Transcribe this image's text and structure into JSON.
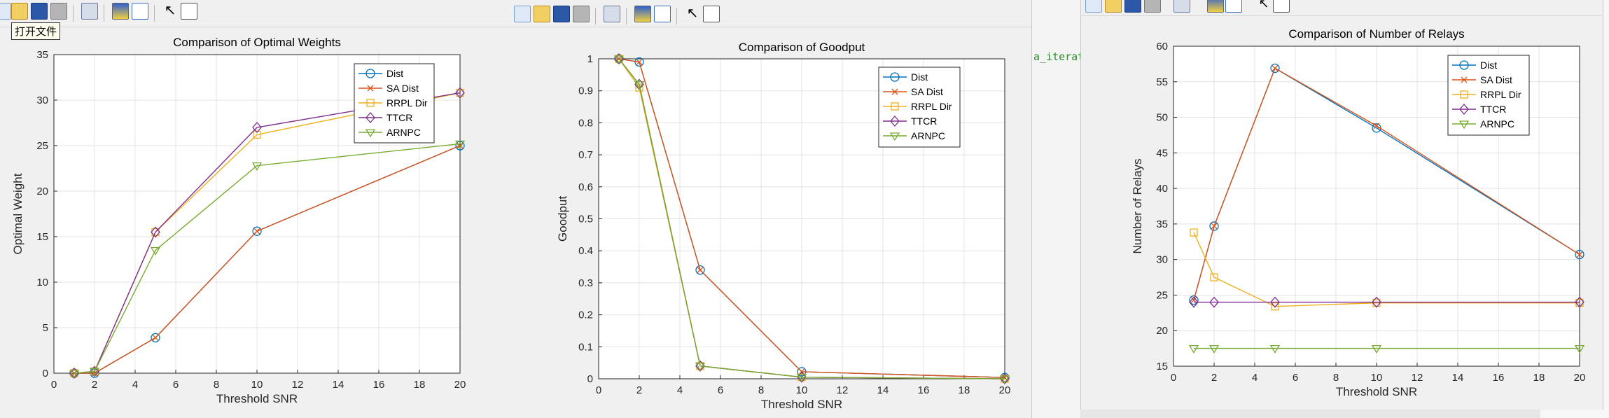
{
  "tooltip": "打开文件",
  "background_code": "a_iterat",
  "windows": [
    {
      "title": "Comparison of Optimal Weights",
      "xlabel": "Threshold SNR",
      "ylabel": "Optimal Weight",
      "xlim": [
        0,
        20
      ],
      "ylim": [
        0,
        35
      ],
      "xticks": [
        0,
        2,
        4,
        6,
        8,
        10,
        12,
        14,
        16,
        18,
        20
      ],
      "yticks": [
        0,
        5,
        10,
        15,
        20,
        25,
        30,
        35
      ],
      "legend": [
        "Dist",
        "SA Dist",
        "RRPL Dir",
        "TTCR",
        "ARNPC"
      ]
    },
    {
      "title": "Comparison of Goodput",
      "xlabel": "Threshold SNR",
      "ylabel": "Goodput",
      "xlim": [
        0,
        20
      ],
      "ylim": [
        0,
        1
      ],
      "xticks": [
        0,
        2,
        4,
        6,
        8,
        10,
        12,
        14,
        16,
        18,
        20
      ],
      "yticks": [
        0,
        0.1,
        0.2,
        0.3,
        0.4,
        0.5,
        0.6,
        0.7,
        0.8,
        0.9,
        1
      ],
      "legend": [
        "Dist",
        "SA Dist",
        "RRPL Dir",
        "TTCR",
        "ARNPC"
      ]
    },
    {
      "title": "Comparison of Number of Relays",
      "xlabel": "Threshold SNR",
      "ylabel": "Number of Relays",
      "xlim": [
        0,
        20
      ],
      "ylim": [
        15,
        60
      ],
      "xticks": [
        0,
        2,
        4,
        6,
        8,
        10,
        12,
        14,
        16,
        18,
        20
      ],
      "yticks": [
        15,
        20,
        25,
        30,
        35,
        40,
        45,
        50,
        55,
        60
      ],
      "legend": [
        "Dist",
        "SA Dist",
        "RRPL Dir",
        "TTCR",
        "ARNPC"
      ]
    }
  ],
  "chart_data": [
    {
      "type": "line",
      "title": "Comparison of Optimal Weights",
      "xlabel": "Threshold SNR",
      "ylabel": "Optimal Weight",
      "xlim": [
        0,
        20
      ],
      "ylim": [
        0,
        35
      ],
      "grid": true,
      "legend_position": "top-right",
      "x": [
        1,
        2,
        5,
        10,
        20
      ],
      "series": [
        {
          "name": "Dist",
          "color": "#0072BD",
          "marker": "circle",
          "values": [
            0,
            0,
            3.9,
            15.6,
            25.0
          ]
        },
        {
          "name": "SA Dist",
          "color": "#D95319",
          "marker": "x",
          "values": [
            0,
            0,
            3.9,
            15.6,
            25.0
          ]
        },
        {
          "name": "RRPL Dir",
          "color": "#EDB120",
          "marker": "square",
          "values": [
            0,
            0.2,
            15.5,
            26.2,
            30.8
          ]
        },
        {
          "name": "TTCR",
          "color": "#7E2F8E",
          "marker": "diamond",
          "values": [
            0,
            0.2,
            15.5,
            27.0,
            30.8
          ]
        },
        {
          "name": "ARNPC",
          "color": "#77AC30",
          "marker": "triangle-down",
          "values": [
            0,
            0.2,
            13.5,
            22.8,
            25.2
          ]
        }
      ]
    },
    {
      "type": "line",
      "title": "Comparison of Goodput",
      "xlabel": "Threshold SNR",
      "ylabel": "Goodput",
      "xlim": [
        0,
        20
      ],
      "ylim": [
        0,
        1
      ],
      "grid": true,
      "legend_position": "top-right",
      "x": [
        1,
        2,
        5,
        10,
        20
      ],
      "series": [
        {
          "name": "Dist",
          "color": "#0072BD",
          "marker": "circle",
          "values": [
            1.0,
            0.99,
            0.34,
            0.022,
            0.004
          ]
        },
        {
          "name": "SA Dist",
          "color": "#D95319",
          "marker": "x",
          "values": [
            1.0,
            0.99,
            0.34,
            0.022,
            0.004
          ]
        },
        {
          "name": "RRPL Dir",
          "color": "#EDB120",
          "marker": "square",
          "values": [
            1.0,
            0.91,
            0.04,
            0.005,
            0.0
          ]
        },
        {
          "name": "TTCR",
          "color": "#7E2F8E",
          "marker": "diamond",
          "values": [
            1.0,
            0.92,
            0.04,
            0.005,
            0.0
          ]
        },
        {
          "name": "ARNPC",
          "color": "#77AC30",
          "marker": "triangle-down",
          "values": [
            1.0,
            0.92,
            0.04,
            0.005,
            0.0
          ]
        }
      ]
    },
    {
      "type": "line",
      "title": "Comparison of Number of Relays",
      "xlabel": "Threshold SNR",
      "ylabel": "Number of Relays",
      "xlim": [
        0,
        20
      ],
      "ylim": [
        15,
        60
      ],
      "grid": true,
      "legend_position": "top-right",
      "x": [
        1,
        2,
        5,
        10,
        20
      ],
      "series": [
        {
          "name": "Dist",
          "color": "#0072BD",
          "marker": "circle",
          "values": [
            24.3,
            34.7,
            56.9,
            48.5,
            30.7
          ]
        },
        {
          "name": "SA Dist",
          "color": "#D95319",
          "marker": "x",
          "values": [
            24.3,
            34.7,
            56.9,
            48.8,
            30.7
          ]
        },
        {
          "name": "RRPL Dir",
          "color": "#EDB120",
          "marker": "square",
          "values": [
            33.8,
            27.5,
            23.4,
            23.9,
            23.9
          ]
        },
        {
          "name": "TTCR",
          "color": "#7E2F8E",
          "marker": "diamond",
          "values": [
            24.0,
            24.0,
            24.0,
            24.0,
            24.0
          ]
        },
        {
          "name": "ARNPC",
          "color": "#77AC30",
          "marker": "triangle-down",
          "values": [
            17.5,
            17.5,
            17.5,
            17.5,
            17.5
          ]
        }
      ]
    }
  ]
}
